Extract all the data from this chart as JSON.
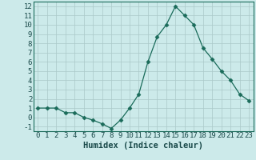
{
  "x": [
    0,
    1,
    2,
    3,
    4,
    5,
    6,
    7,
    8,
    9,
    10,
    11,
    12,
    13,
    14,
    15,
    16,
    17,
    18,
    19,
    20,
    21,
    22,
    23
  ],
  "y": [
    1,
    1,
    1,
    0.5,
    0.5,
    0,
    -0.3,
    -0.7,
    -1.2,
    -0.3,
    1,
    2.5,
    6,
    8.7,
    10,
    12,
    11,
    10,
    7.5,
    6.3,
    5,
    4,
    2.5,
    1.8
  ],
  "line_color": "#1a6b5a",
  "marker": "D",
  "marker_size": 2.5,
  "bg_color": "#cceaea",
  "grid_color": "#aac8c8",
  "xlabel": "Humidex (Indice chaleur)",
  "xlim": [
    -0.5,
    23.5
  ],
  "ylim": [
    -1.5,
    12.5
  ],
  "yticks": [
    -1,
    0,
    1,
    2,
    3,
    4,
    5,
    6,
    7,
    8,
    9,
    10,
    11,
    12
  ],
  "xticks": [
    0,
    1,
    2,
    3,
    4,
    5,
    6,
    7,
    8,
    9,
    10,
    11,
    12,
    13,
    14,
    15,
    16,
    17,
    18,
    19,
    20,
    21,
    22,
    23
  ],
  "xtick_labels": [
    "0",
    "1",
    "2",
    "3",
    "4",
    "5",
    "6",
    "7",
    "8",
    "9",
    "10",
    "11",
    "12",
    "13",
    "14",
    "15",
    "16",
    "17",
    "18",
    "19",
    "20",
    "21",
    "22",
    "23"
  ],
  "ytick_labels": [
    "-1",
    "0",
    "1",
    "2",
    "3",
    "4",
    "5",
    "6",
    "7",
    "8",
    "9",
    "10",
    "11",
    "12"
  ],
  "font_size": 6.5,
  "xlabel_fontsize": 7.5,
  "label_color": "#1a4a4a",
  "spine_color": "#1a6b5a",
  "line_width": 0.9
}
